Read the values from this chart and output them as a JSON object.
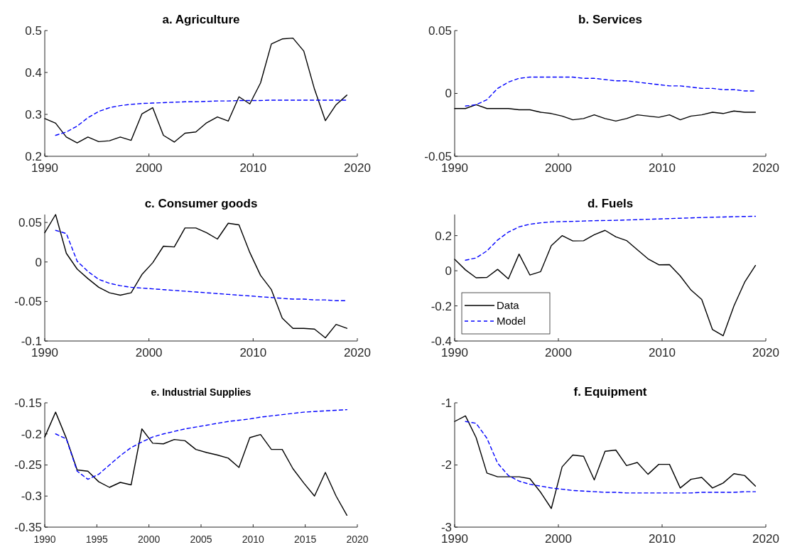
{
  "chart_data": [
    {
      "type": "line",
      "title": "a. Agriculture",
      "x": [
        1990,
        1991.04,
        1992.07,
        1993.11,
        1994.14,
        1995.18,
        1996.21,
        1997.25,
        1998.29,
        1999.32,
        2000.36,
        2001.39,
        2002.43,
        2003.46,
        2004.5,
        2005.54,
        2006.57,
        2007.61,
        2008.64,
        2009.68,
        2010.71,
        2011.75,
        2012.79,
        2013.82,
        2014.86,
        2015.89,
        2016.93,
        2017.96,
        2019
      ],
      "xlim": [
        1990,
        2020
      ],
      "xticks": [
        1990,
        2000,
        2010,
        2020
      ],
      "ylim": [
        0.2,
        0.5
      ],
      "yticks": [
        0.2,
        0.3,
        0.4,
        0.5
      ],
      "series": [
        {
          "color": "#000000",
          "line_style": "solid",
          "values": [
            0.29,
            0.279,
            0.246,
            0.232,
            0.246,
            0.235,
            0.237,
            0.246,
            0.238,
            0.301,
            0.316,
            0.25,
            0.234,
            0.255,
            0.258,
            0.28,
            0.294,
            0.284,
            0.342,
            0.325,
            0.375,
            0.468,
            0.48,
            0.482,
            0.451,
            0.36,
            0.285,
            0.323,
            0.346
          ]
        },
        {
          "color": "#0000ff",
          "line_style": "dashed",
          "values": [
            null,
            0.25,
            0.258,
            0.272,
            0.292,
            0.307,
            0.316,
            0.321,
            0.324,
            0.326,
            0.327,
            0.328,
            0.329,
            0.33,
            0.33,
            0.331,
            0.332,
            0.332,
            0.333,
            0.333,
            0.333,
            0.334,
            0.334,
            0.334,
            0.334,
            0.334,
            0.334,
            0.334,
            0.334
          ]
        }
      ]
    },
    {
      "type": "line",
      "title": "b. Services",
      "x": [
        1990,
        1991.04,
        1992.07,
        1993.11,
        1994.14,
        1995.18,
        1996.21,
        1997.25,
        1998.29,
        1999.32,
        2000.36,
        2001.39,
        2002.43,
        2003.46,
        2004.5,
        2005.54,
        2006.57,
        2007.61,
        2008.64,
        2009.68,
        2010.71,
        2011.75,
        2012.79,
        2013.82,
        2014.86,
        2015.89,
        2016.93,
        2017.96,
        2019
      ],
      "xlim": [
        1990,
        2020
      ],
      "xticks": [
        1990,
        2000,
        2010,
        2020
      ],
      "ylim": [
        -0.05,
        0.05
      ],
      "yticks": [
        -0.05,
        0,
        0.05
      ],
      "series": [
        {
          "color": "#000000",
          "line_style": "solid",
          "values": [
            -0.012,
            -0.012,
            -0.009,
            -0.012,
            -0.012,
            -0.012,
            -0.013,
            -0.013,
            -0.015,
            -0.016,
            -0.018,
            -0.021,
            -0.02,
            -0.017,
            -0.02,
            -0.022,
            -0.02,
            -0.017,
            -0.018,
            -0.019,
            -0.017,
            -0.021,
            -0.018,
            -0.017,
            -0.015,
            -0.016,
            -0.014,
            -0.015,
            -0.015
          ]
        },
        {
          "color": "#0000ff",
          "line_style": "dashed",
          "values": [
            null,
            -0.01,
            -0.009,
            -0.005,
            0.004,
            0.009,
            0.012,
            0.013,
            0.013,
            0.013,
            0.013,
            0.013,
            0.012,
            0.012,
            0.011,
            0.01,
            0.01,
            0.009,
            0.008,
            0.007,
            0.006,
            0.006,
            0.005,
            0.004,
            0.004,
            0.003,
            0.003,
            0.002,
            0.002
          ]
        }
      ]
    },
    {
      "type": "line",
      "title": "c. Consumer goods",
      "x": [
        1990,
        1991.04,
        1992.07,
        1993.11,
        1994.14,
        1995.18,
        1996.21,
        1997.25,
        1998.29,
        1999.32,
        2000.36,
        2001.39,
        2002.43,
        2003.46,
        2004.5,
        2005.54,
        2006.57,
        2007.61,
        2008.64,
        2009.68,
        2010.71,
        2011.75,
        2012.79,
        2013.82,
        2014.86,
        2015.89,
        2016.93,
        2017.96,
        2019
      ],
      "xlim": [
        1990,
        2020
      ],
      "xticks": [
        1990,
        2000,
        2010,
        2020
      ],
      "ylim": [
        -0.1,
        0.06
      ],
      "yticks": [
        -0.1,
        -0.05,
        0,
        0.05
      ],
      "series": [
        {
          "color": "#000000",
          "line_style": "solid",
          "values": [
            0.037,
            0.06,
            0.011,
            -0.009,
            -0.021,
            -0.032,
            -0.039,
            -0.042,
            -0.039,
            -0.016,
            -0.001,
            0.02,
            0.019,
            0.043,
            0.043,
            0.037,
            0.029,
            0.049,
            0.047,
            0.012,
            -0.017,
            -0.035,
            -0.071,
            -0.084,
            -0.084,
            -0.085,
            -0.096,
            -0.079,
            -0.084
          ]
        },
        {
          "color": "#0000ff",
          "line_style": "dashed",
          "values": [
            null,
            0.04,
            0.036,
            0.001,
            -0.012,
            -0.022,
            -0.027,
            -0.03,
            -0.032,
            -0.033,
            -0.034,
            -0.035,
            -0.036,
            -0.037,
            -0.038,
            -0.039,
            -0.04,
            -0.041,
            -0.042,
            -0.043,
            -0.044,
            -0.045,
            -0.046,
            -0.047,
            -0.047,
            -0.048,
            -0.048,
            -0.049,
            -0.049
          ]
        }
      ]
    },
    {
      "type": "line",
      "title": "d. Fuels",
      "legend": "bottom left",
      "x": [
        1990,
        1991.04,
        1992.07,
        1993.11,
        1994.14,
        1995.18,
        1996.21,
        1997.25,
        1998.29,
        1999.32,
        2000.36,
        2001.39,
        2002.43,
        2003.46,
        2004.5,
        2005.54,
        2006.57,
        2007.61,
        2008.64,
        2009.68,
        2010.71,
        2011.75,
        2012.79,
        2013.82,
        2014.86,
        2015.89,
        2016.93,
        2017.96,
        2019
      ],
      "xlim": [
        1990,
        2020
      ],
      "xticks": [
        1990,
        2000,
        2010,
        2020
      ],
      "ylim": [
        -0.4,
        0.32
      ],
      "yticks": [
        -0.4,
        -0.2,
        0,
        0.2
      ],
      "series": [
        {
          "name": "Data",
          "color": "#000000",
          "line_style": "solid",
          "values": [
            0.065,
            0.005,
            -0.04,
            -0.038,
            0.008,
            -0.046,
            0.095,
            -0.024,
            -0.005,
            0.143,
            0.2,
            0.17,
            0.171,
            0.205,
            0.23,
            0.193,
            0.172,
            0.12,
            0.068,
            0.034,
            0.035,
            -0.03,
            -0.11,
            -0.163,
            -0.335,
            -0.37,
            -0.2,
            -0.065,
            0.03
          ]
        },
        {
          "name": "Model",
          "color": "#0000ff",
          "line_style": "dashed",
          "values": [
            null,
            0.06,
            0.073,
            0.113,
            0.175,
            0.22,
            0.25,
            0.265,
            0.273,
            0.278,
            0.28,
            0.281,
            0.283,
            0.285,
            0.286,
            0.287,
            0.289,
            0.291,
            0.293,
            0.295,
            0.297,
            0.299,
            0.301,
            0.303,
            0.305,
            0.306,
            0.308,
            0.309,
            0.31
          ]
        }
      ]
    },
    {
      "type": "line",
      "title": "e. Industrial Supplies",
      "x": [
        1990,
        1991.04,
        1992.07,
        1993.11,
        1994.14,
        1995.18,
        1996.21,
        1997.25,
        1998.29,
        1999.32,
        2000.36,
        2001.39,
        2002.43,
        2003.46,
        2004.5,
        2005.54,
        2006.57,
        2007.61,
        2008.64,
        2009.68,
        2010.71,
        2011.75,
        2012.79,
        2013.82,
        2014.86,
        2015.89,
        2016.93,
        2017.96,
        2019
      ],
      "xlim": [
        1990,
        2020
      ],
      "xticks": [
        1990,
        1995,
        2000,
        2005,
        2010,
        2015,
        2020
      ],
      "ylim": [
        -0.35,
        -0.15
      ],
      "yticks": [
        -0.35,
        -0.3,
        -0.25,
        -0.2,
        -0.15
      ],
      "series": [
        {
          "color": "#000000",
          "line_style": "solid",
          "values": [
            -0.205,
            -0.165,
            -0.207,
            -0.258,
            -0.26,
            -0.277,
            -0.286,
            -0.278,
            -0.282,
            -0.192,
            -0.215,
            -0.216,
            -0.209,
            -0.211,
            -0.225,
            -0.23,
            -0.234,
            -0.239,
            -0.254,
            -0.206,
            -0.201,
            -0.225,
            -0.225,
            -0.256,
            -0.279,
            -0.3,
            -0.262,
            -0.3,
            -0.331
          ]
        },
        {
          "color": "#0000ff",
          "line_style": "dashed",
          "values": [
            null,
            -0.2,
            -0.208,
            -0.26,
            -0.273,
            -0.265,
            -0.25,
            -0.235,
            -0.222,
            -0.213,
            -0.205,
            -0.2,
            -0.196,
            -0.192,
            -0.189,
            -0.186,
            -0.183,
            -0.18,
            -0.178,
            -0.176,
            -0.173,
            -0.171,
            -0.169,
            -0.167,
            -0.165,
            -0.164,
            -0.163,
            -0.162,
            -0.161
          ]
        }
      ]
    },
    {
      "type": "line",
      "title": "f. Equipment",
      "x": [
        1990,
        1991.04,
        1992.07,
        1993.11,
        1994.14,
        1995.18,
        1996.21,
        1997.25,
        1998.29,
        1999.32,
        2000.36,
        2001.39,
        2002.43,
        2003.46,
        2004.5,
        2005.54,
        2006.57,
        2007.61,
        2008.64,
        2009.68,
        2010.71,
        2011.75,
        2012.79,
        2013.82,
        2014.86,
        2015.89,
        2016.93,
        2017.96,
        2019
      ],
      "xlim": [
        1990,
        2020
      ],
      "xticks": [
        1990,
        2000,
        2010,
        2020
      ],
      "ylim": [
        -3,
        -1
      ],
      "yticks": [
        -3,
        -2,
        -1
      ],
      "series": [
        {
          "color": "#000000",
          "line_style": "solid",
          "values": [
            -1.3,
            -1.21,
            -1.56,
            -2.13,
            -2.19,
            -2.19,
            -2.19,
            -2.22,
            -2.44,
            -2.7,
            -2.03,
            -1.84,
            -1.86,
            -2.24,
            -1.78,
            -1.76,
            -2.01,
            -1.96,
            -2.15,
            -1.99,
            -1.99,
            -2.37,
            -2.23,
            -2.2,
            -2.37,
            -2.29,
            -2.14,
            -2.17,
            -2.34
          ]
        },
        {
          "color": "#0000ff",
          "line_style": "dashed",
          "values": [
            null,
            -1.3,
            -1.33,
            -1.57,
            -1.97,
            -2.17,
            -2.26,
            -2.31,
            -2.34,
            -2.37,
            -2.39,
            -2.41,
            -2.42,
            -2.43,
            -2.44,
            -2.44,
            -2.45,
            -2.45,
            -2.45,
            -2.45,
            -2.45,
            -2.45,
            -2.45,
            -2.44,
            -2.44,
            -2.44,
            -2.44,
            -2.43,
            -2.43
          ]
        }
      ]
    }
  ]
}
